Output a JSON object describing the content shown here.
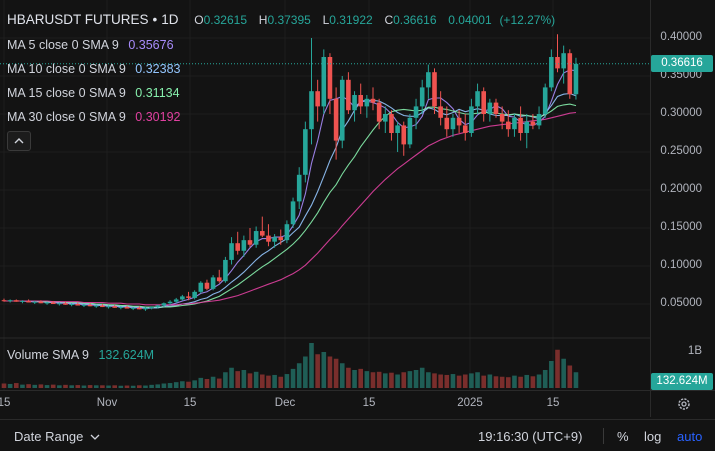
{
  "header": {
    "symbol": "HBARUSDT FUTURES",
    "sep": "•",
    "interval": "1D",
    "open_label": "O",
    "open": "0.32615",
    "high_label": "H",
    "high": "0.37395",
    "low_label": "L",
    "low": "0.31922",
    "close_label": "C",
    "close": "0.36616",
    "change": "0.04001",
    "change_pct": "(+12.27%)"
  },
  "indicators": [
    {
      "label": "MA 5 close 0 SMA 9",
      "value": "0.35676",
      "color": "#a78bfa"
    },
    {
      "label": "MA 10 close 0 SMA 9",
      "value": "0.32383",
      "color": "#93c5fd"
    },
    {
      "label": "MA 15 close 0 SMA 9",
      "value": "0.31134",
      "color": "#86efac"
    },
    {
      "label": "MA 30 close 0 SMA 9",
      "value": "0.30192",
      "color": "#e040a0"
    }
  ],
  "volume_legend": {
    "label": "Volume SMA 9",
    "value": "132.624M"
  },
  "collapse_icon": "chevron-up-icon",
  "price_axis": {
    "labels": [
      "0.40000",
      "0.35000",
      "0.30000",
      "0.25000",
      "0.20000",
      "0.15000",
      "0.10000",
      "0.05000"
    ],
    "current_price": "0.36616",
    "volume_axis_label": "1B",
    "volume_current": "132.624M"
  },
  "time_axis": {
    "labels": [
      "15",
      "Nov",
      "15",
      "Dec",
      "15",
      "2025",
      "15"
    ]
  },
  "colors": {
    "up": "#26a69a",
    "down": "#ef5350",
    "background": "#131313",
    "grid": "#1f1f1f"
  },
  "bottom_bar": {
    "date_range_label": "Date Range",
    "time": "19:16:30 (UTC+9)",
    "percent_label": "%",
    "log_label": "log",
    "auto_label": "auto"
  },
  "settings_icon": "gear-icon",
  "chart_data": {
    "type": "candlestick",
    "y_range": [
      0.0,
      0.42
    ],
    "candles": [
      [
        0.055,
        0.057,
        0.053,
        0.054
      ],
      [
        0.054,
        0.056,
        0.052,
        0.055
      ],
      [
        0.055,
        0.056,
        0.053,
        0.053
      ],
      [
        0.053,
        0.055,
        0.051,
        0.054
      ],
      [
        0.054,
        0.056,
        0.052,
        0.052
      ],
      [
        0.052,
        0.054,
        0.05,
        0.053
      ],
      [
        0.053,
        0.055,
        0.051,
        0.051
      ],
      [
        0.051,
        0.053,
        0.049,
        0.052
      ],
      [
        0.052,
        0.054,
        0.05,
        0.05
      ],
      [
        0.05,
        0.052,
        0.048,
        0.051
      ],
      [
        0.051,
        0.053,
        0.049,
        0.049
      ],
      [
        0.049,
        0.051,
        0.047,
        0.05
      ],
      [
        0.05,
        0.052,
        0.048,
        0.048
      ],
      [
        0.048,
        0.05,
        0.046,
        0.049
      ],
      [
        0.049,
        0.051,
        0.047,
        0.047
      ],
      [
        0.047,
        0.049,
        0.045,
        0.048
      ],
      [
        0.048,
        0.05,
        0.046,
        0.046
      ],
      [
        0.046,
        0.048,
        0.044,
        0.047
      ],
      [
        0.047,
        0.049,
        0.045,
        0.045
      ],
      [
        0.045,
        0.047,
        0.043,
        0.046
      ],
      [
        0.046,
        0.048,
        0.044,
        0.044
      ],
      [
        0.044,
        0.046,
        0.042,
        0.045
      ],
      [
        0.045,
        0.047,
        0.043,
        0.043
      ],
      [
        0.043,
        0.046,
        0.041,
        0.045
      ],
      [
        0.045,
        0.047,
        0.043,
        0.046
      ],
      [
        0.046,
        0.049,
        0.044,
        0.048
      ],
      [
        0.048,
        0.052,
        0.046,
        0.051
      ],
      [
        0.051,
        0.055,
        0.049,
        0.053
      ],
      [
        0.053,
        0.058,
        0.051,
        0.056
      ],
      [
        0.056,
        0.062,
        0.054,
        0.06
      ],
      [
        0.06,
        0.066,
        0.055,
        0.058
      ],
      [
        0.058,
        0.068,
        0.056,
        0.066
      ],
      [
        0.066,
        0.08,
        0.064,
        0.078
      ],
      [
        0.078,
        0.082,
        0.068,
        0.07
      ],
      [
        0.07,
        0.088,
        0.068,
        0.085
      ],
      [
        0.085,
        0.095,
        0.078,
        0.08
      ],
      [
        0.08,
        0.112,
        0.078,
        0.108
      ],
      [
        0.108,
        0.138,
        0.102,
        0.13
      ],
      [
        0.13,
        0.145,
        0.115,
        0.12
      ],
      [
        0.12,
        0.14,
        0.112,
        0.134
      ],
      [
        0.134,
        0.15,
        0.125,
        0.128
      ],
      [
        0.128,
        0.152,
        0.124,
        0.146
      ],
      [
        0.146,
        0.165,
        0.138,
        0.14
      ],
      [
        0.14,
        0.155,
        0.126,
        0.132
      ],
      [
        0.132,
        0.142,
        0.124,
        0.138
      ],
      [
        0.138,
        0.148,
        0.128,
        0.134
      ],
      [
        0.134,
        0.16,
        0.13,
        0.155
      ],
      [
        0.155,
        0.19,
        0.15,
        0.185
      ],
      [
        0.185,
        0.23,
        0.175,
        0.22
      ],
      [
        0.22,
        0.29,
        0.21,
        0.28
      ],
      [
        0.28,
        0.4,
        0.26,
        0.33
      ],
      [
        0.33,
        0.345,
        0.29,
        0.31
      ],
      [
        0.31,
        0.385,
        0.3,
        0.375
      ],
      [
        0.375,
        0.38,
        0.3,
        0.32
      ],
      [
        0.32,
        0.335,
        0.24,
        0.265
      ],
      [
        0.265,
        0.35,
        0.255,
        0.345
      ],
      [
        0.345,
        0.355,
        0.3,
        0.305
      ],
      [
        0.305,
        0.33,
        0.29,
        0.325
      ],
      [
        0.325,
        0.34,
        0.3,
        0.31
      ],
      [
        0.31,
        0.325,
        0.295,
        0.32
      ],
      [
        0.32,
        0.335,
        0.305,
        0.315
      ],
      [
        0.315,
        0.32,
        0.28,
        0.29
      ],
      [
        0.29,
        0.31,
        0.275,
        0.3
      ],
      [
        0.3,
        0.305,
        0.265,
        0.275
      ],
      [
        0.275,
        0.29,
        0.25,
        0.285
      ],
      [
        0.285,
        0.29,
        0.245,
        0.26
      ],
      [
        0.26,
        0.3,
        0.255,
        0.295
      ],
      [
        0.295,
        0.32,
        0.28,
        0.31
      ],
      [
        0.31,
        0.345,
        0.3,
        0.335
      ],
      [
        0.335,
        0.365,
        0.32,
        0.355
      ],
      [
        0.355,
        0.36,
        0.3,
        0.31
      ],
      [
        0.31,
        0.33,
        0.285,
        0.295
      ],
      [
        0.295,
        0.31,
        0.27,
        0.28
      ],
      [
        0.28,
        0.3,
        0.27,
        0.295
      ],
      [
        0.295,
        0.305,
        0.275,
        0.285
      ],
      [
        0.285,
        0.3,
        0.265,
        0.275
      ],
      [
        0.275,
        0.32,
        0.27,
        0.31
      ],
      [
        0.31,
        0.34,
        0.3,
        0.33
      ],
      [
        0.33,
        0.335,
        0.29,
        0.3
      ],
      [
        0.3,
        0.32,
        0.29,
        0.315
      ],
      [
        0.315,
        0.32,
        0.295,
        0.3
      ],
      [
        0.3,
        0.31,
        0.28,
        0.29
      ],
      [
        0.29,
        0.305,
        0.27,
        0.28
      ],
      [
        0.28,
        0.3,
        0.27,
        0.295
      ],
      [
        0.295,
        0.31,
        0.265,
        0.275
      ],
      [
        0.275,
        0.3,
        0.255,
        0.29
      ],
      [
        0.29,
        0.3,
        0.28,
        0.285
      ],
      [
        0.285,
        0.31,
        0.28,
        0.3
      ],
      [
        0.3,
        0.34,
        0.295,
        0.335
      ],
      [
        0.335,
        0.385,
        0.33,
        0.375
      ],
      [
        0.375,
        0.405,
        0.355,
        0.36
      ],
      [
        0.36,
        0.39,
        0.34,
        0.38
      ],
      [
        0.38,
        0.385,
        0.32,
        0.326
      ],
      [
        0.326,
        0.374,
        0.319,
        0.366
      ]
    ],
    "volumes": [
      20,
      18,
      22,
      15,
      17,
      14,
      16,
      13,
      15,
      12,
      14,
      12,
      13,
      11,
      13,
      12,
      12,
      11,
      12,
      10,
      11,
      10,
      12,
      11,
      14,
      16,
      20,
      22,
      26,
      30,
      28,
      34,
      45,
      40,
      50,
      42,
      70,
      90,
      75,
      80,
      65,
      72,
      60,
      55,
      58,
      50,
      62,
      85,
      110,
      140,
      200,
      150,
      160,
      140,
      130,
      110,
      90,
      80,
      85,
      75,
      70,
      72,
      65,
      68,
      60,
      70,
      75,
      80,
      90,
      70,
      65,
      60,
      58,
      62,
      55,
      60,
      65,
      70,
      55,
      60,
      52,
      50,
      48,
      55,
      50,
      58,
      52,
      60,
      80,
      120,
      170,
      130,
      100,
      70
    ],
    "ma5": [
      0.054,
      0.054,
      0.054,
      0.054,
      0.053,
      0.053,
      0.053,
      0.052,
      0.052,
      0.051,
      0.051,
      0.05,
      0.05,
      0.049,
      0.049,
      0.048,
      0.048,
      0.047,
      0.047,
      0.046,
      0.046,
      0.045,
      0.045,
      0.044,
      0.045,
      0.045,
      0.047,
      0.049,
      0.051,
      0.054,
      0.056,
      0.059,
      0.064,
      0.066,
      0.071,
      0.076,
      0.084,
      0.094,
      0.105,
      0.114,
      0.124,
      0.132,
      0.136,
      0.136,
      0.138,
      0.138,
      0.141,
      0.153,
      0.167,
      0.195,
      0.235,
      0.265,
      0.3,
      0.318,
      0.32,
      0.323,
      0.318,
      0.309,
      0.316,
      0.317,
      0.315,
      0.312,
      0.308,
      0.3,
      0.289,
      0.282,
      0.283,
      0.286,
      0.297,
      0.319,
      0.321,
      0.321,
      0.315,
      0.307,
      0.293,
      0.286,
      0.289,
      0.299,
      0.304,
      0.306,
      0.311,
      0.307,
      0.297,
      0.296,
      0.289,
      0.286,
      0.285,
      0.289,
      0.297,
      0.317,
      0.339,
      0.354,
      0.358,
      0.357
    ],
    "ma10": [
      0.054,
      0.054,
      0.054,
      0.054,
      0.054,
      0.053,
      0.053,
      0.053,
      0.053,
      0.052,
      0.052,
      0.051,
      0.051,
      0.05,
      0.05,
      0.049,
      0.049,
      0.048,
      0.048,
      0.047,
      0.047,
      0.046,
      0.046,
      0.045,
      0.045,
      0.045,
      0.046,
      0.047,
      0.048,
      0.05,
      0.051,
      0.053,
      0.056,
      0.058,
      0.063,
      0.066,
      0.072,
      0.079,
      0.085,
      0.092,
      0.1,
      0.108,
      0.115,
      0.12,
      0.126,
      0.131,
      0.136,
      0.144,
      0.151,
      0.166,
      0.18,
      0.198,
      0.218,
      0.239,
      0.256,
      0.279,
      0.291,
      0.305,
      0.317,
      0.318,
      0.318,
      0.317,
      0.313,
      0.308,
      0.302,
      0.298,
      0.297,
      0.297,
      0.302,
      0.308,
      0.306,
      0.301,
      0.299,
      0.302,
      0.306,
      0.303,
      0.305,
      0.307,
      0.305,
      0.3,
      0.298,
      0.298,
      0.298,
      0.3,
      0.297,
      0.298,
      0.296,
      0.294,
      0.301,
      0.311,
      0.323,
      0.326,
      0.327,
      0.324
    ],
    "ma15": [
      0.054,
      0.054,
      0.054,
      0.054,
      0.054,
      0.054,
      0.053,
      0.053,
      0.053,
      0.053,
      0.052,
      0.052,
      0.052,
      0.051,
      0.051,
      0.05,
      0.05,
      0.049,
      0.049,
      0.048,
      0.048,
      0.047,
      0.047,
      0.046,
      0.046,
      0.046,
      0.046,
      0.046,
      0.047,
      0.048,
      0.049,
      0.05,
      0.052,
      0.054,
      0.057,
      0.06,
      0.065,
      0.07,
      0.075,
      0.081,
      0.087,
      0.093,
      0.099,
      0.104,
      0.11,
      0.116,
      0.122,
      0.129,
      0.137,
      0.147,
      0.158,
      0.17,
      0.184,
      0.197,
      0.207,
      0.221,
      0.233,
      0.244,
      0.257,
      0.268,
      0.279,
      0.289,
      0.297,
      0.303,
      0.305,
      0.306,
      0.305,
      0.304,
      0.305,
      0.309,
      0.309,
      0.307,
      0.306,
      0.304,
      0.302,
      0.3,
      0.3,
      0.301,
      0.302,
      0.302,
      0.301,
      0.3,
      0.299,
      0.3,
      0.299,
      0.298,
      0.297,
      0.296,
      0.299,
      0.304,
      0.31,
      0.312,
      0.313,
      0.311
    ],
    "ma30": [
      0.054,
      0.054,
      0.054,
      0.054,
      0.054,
      0.054,
      0.054,
      0.054,
      0.053,
      0.053,
      0.053,
      0.053,
      0.053,
      0.052,
      0.052,
      0.052,
      0.052,
      0.051,
      0.051,
      0.051,
      0.05,
      0.05,
      0.05,
      0.049,
      0.049,
      0.049,
      0.049,
      0.049,
      0.049,
      0.05,
      0.05,
      0.051,
      0.052,
      0.053,
      0.054,
      0.055,
      0.057,
      0.059,
      0.061,
      0.064,
      0.067,
      0.07,
      0.073,
      0.076,
      0.079,
      0.082,
      0.086,
      0.09,
      0.095,
      0.101,
      0.109,
      0.117,
      0.126,
      0.135,
      0.143,
      0.153,
      0.162,
      0.171,
      0.18,
      0.189,
      0.198,
      0.206,
      0.214,
      0.221,
      0.228,
      0.234,
      0.24,
      0.246,
      0.252,
      0.258,
      0.262,
      0.266,
      0.269,
      0.272,
      0.274,
      0.276,
      0.278,
      0.28,
      0.282,
      0.284,
      0.285,
      0.286,
      0.287,
      0.288,
      0.289,
      0.29,
      0.291,
      0.292,
      0.293,
      0.295,
      0.297,
      0.299,
      0.301,
      0.302
    ]
  }
}
